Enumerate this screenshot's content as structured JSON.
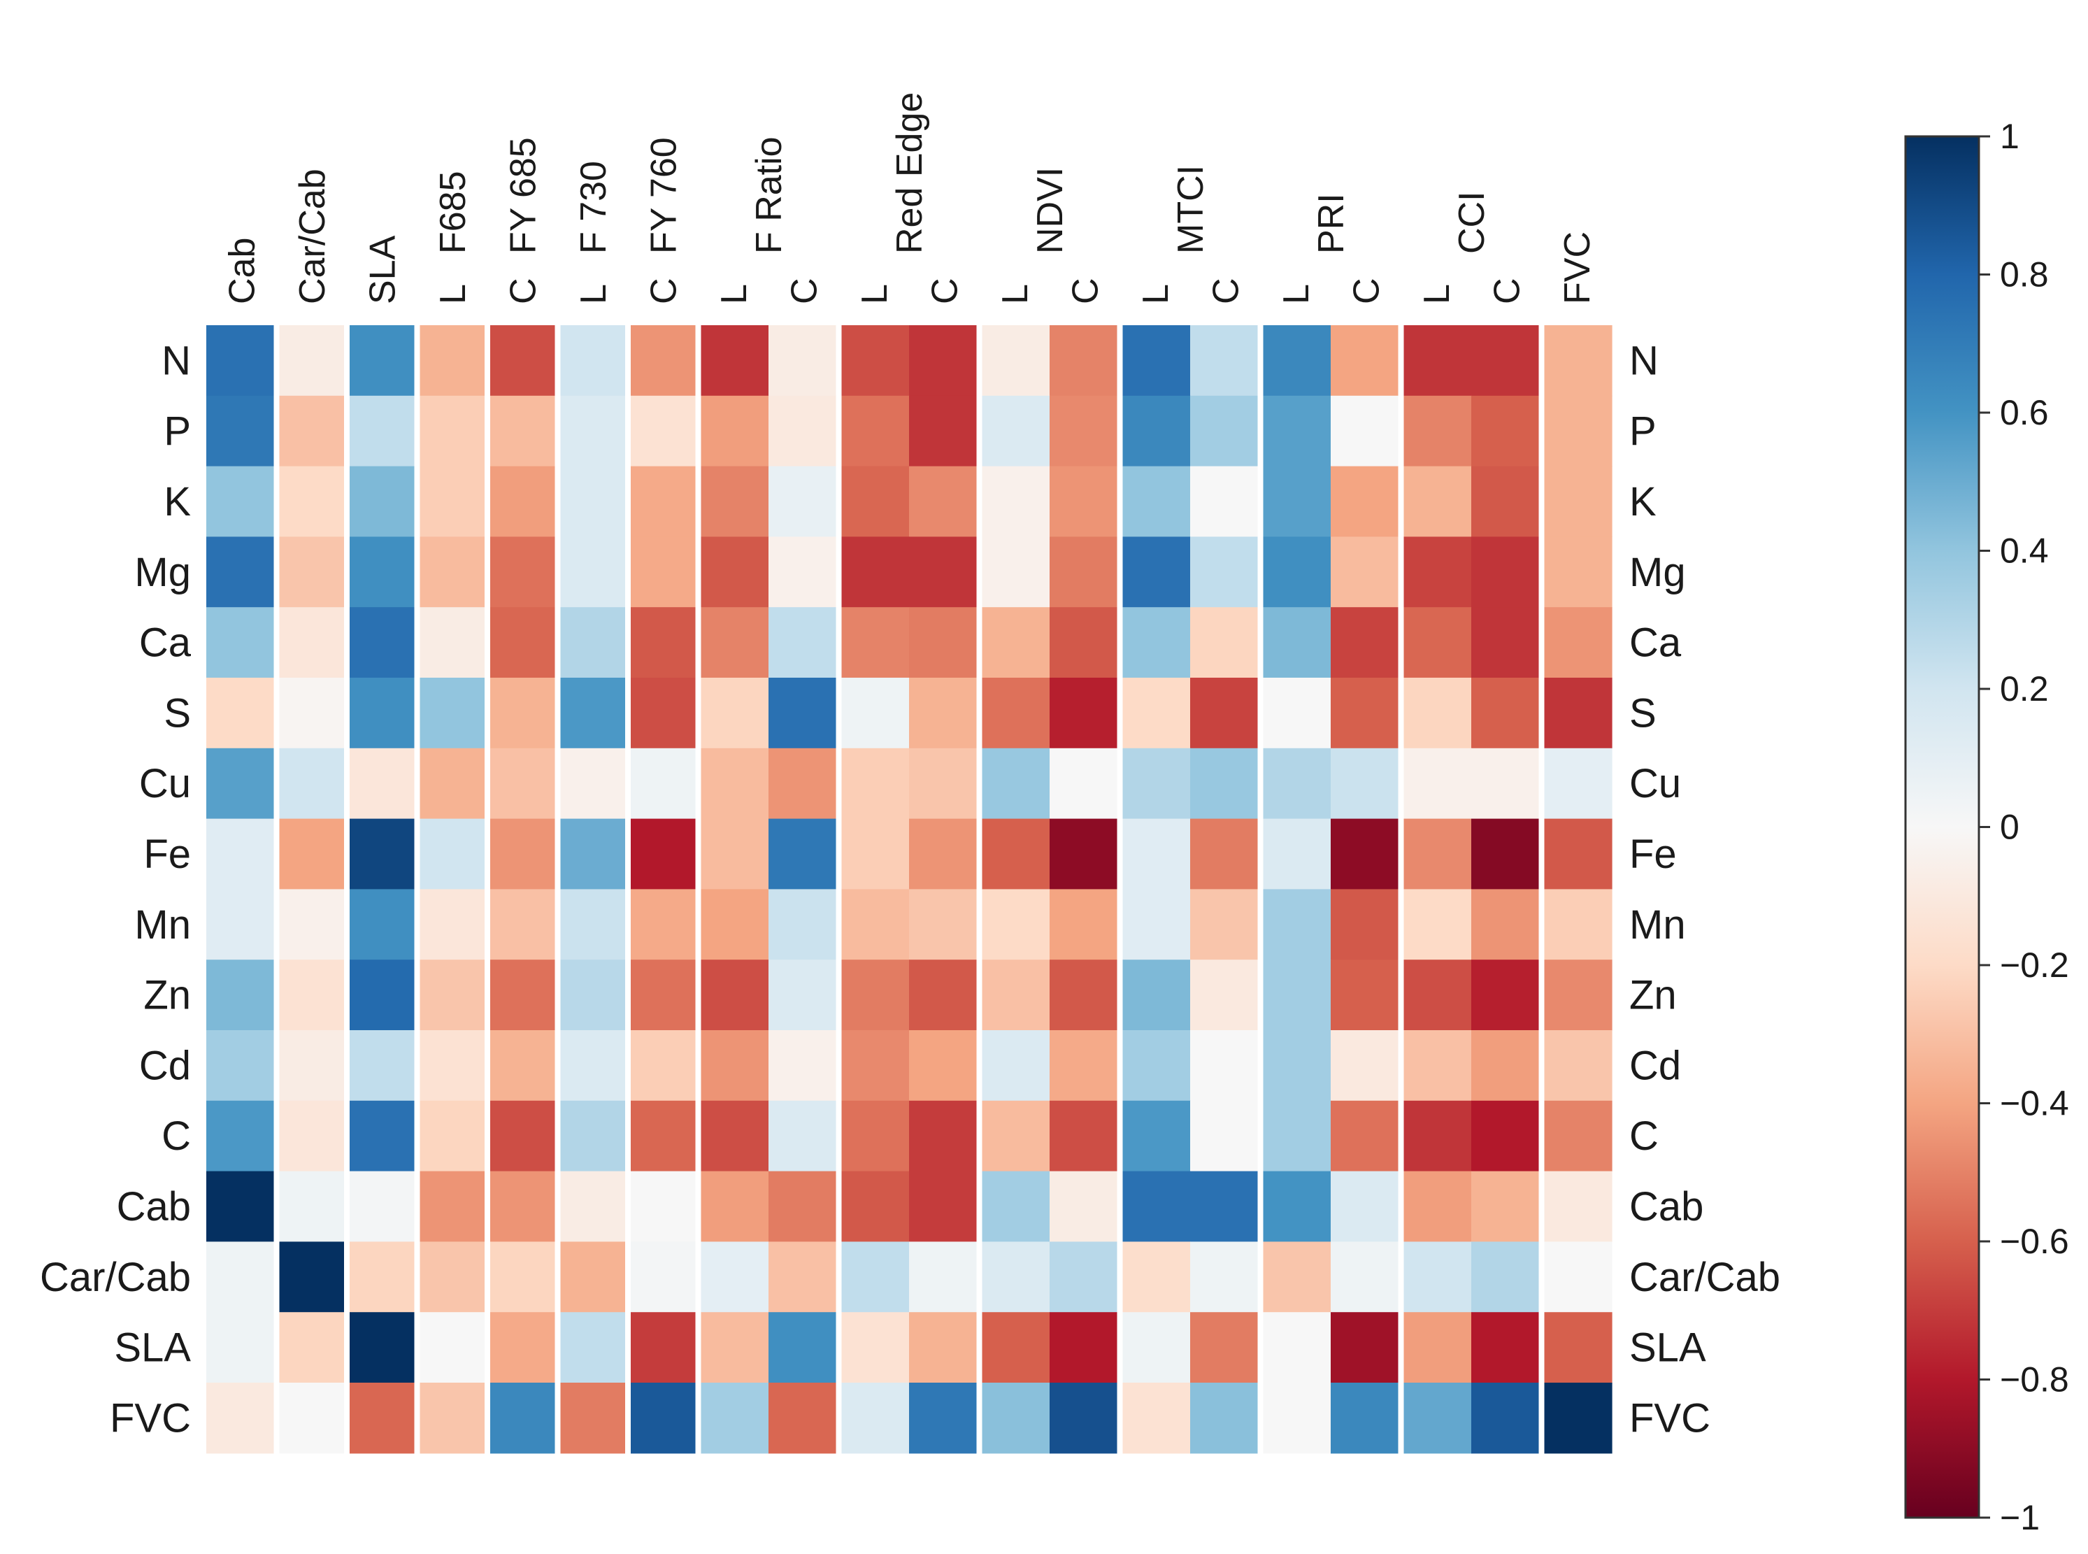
{
  "chart_data": {
    "type": "heatmap",
    "title": "",
    "rows": [
      "N",
      "P",
      "K",
      "Mg",
      "Ca",
      "S",
      "Cu",
      "Fe",
      "Mn",
      "Zn",
      "Cd",
      "C",
      "Cab",
      "Car/Cab",
      "SLA",
      "FVC"
    ],
    "columns": [
      {
        "label": "Cab",
        "group": ""
      },
      {
        "label": "Car/Cab",
        "group": ""
      },
      {
        "label": "SLA",
        "group": ""
      },
      {
        "label": "L",
        "group": "F685"
      },
      {
        "label": "C",
        "group": "FY 685"
      },
      {
        "label": "L",
        "group": "F 730"
      },
      {
        "label": "C",
        "group": "FY 760"
      },
      {
        "label": "L",
        "group": "F Ratio"
      },
      {
        "label": "C",
        "group": "F Ratio"
      },
      {
        "label": "L",
        "group": "Red Edge"
      },
      {
        "label": "C",
        "group": "Red Edge"
      },
      {
        "label": "L",
        "group": "NDVI"
      },
      {
        "label": "C",
        "group": "NDVI"
      },
      {
        "label": "L",
        "group": "MTCI"
      },
      {
        "label": "C",
        "group": "MTCI"
      },
      {
        "label": "L",
        "group": "PRI"
      },
      {
        "label": "C",
        "group": "PRI"
      },
      {
        "label": "L",
        "group": "CCI"
      },
      {
        "label": "C",
        "group": "CCI"
      },
      {
        "label": "FVC",
        "group": ""
      }
    ],
    "column_groups": [
      {
        "label": "Cab",
        "columns": [
          0
        ]
      },
      {
        "label": "Car/Cab",
        "columns": [
          1
        ]
      },
      {
        "label": "SLA",
        "columns": [
          2
        ]
      },
      {
        "label": "F685",
        "columns": [
          3
        ]
      },
      {
        "label": "FY 685",
        "columns": [
          4
        ]
      },
      {
        "label": "F 730",
        "columns": [
          5
        ]
      },
      {
        "label": "FY 760",
        "columns": [
          6
        ]
      },
      {
        "label": "F Ratio",
        "columns": [
          7,
          8
        ]
      },
      {
        "label": "Red Edge",
        "columns": [
          9,
          10
        ]
      },
      {
        "label": "NDVI",
        "columns": [
          11,
          12
        ]
      },
      {
        "label": "MTCI",
        "columns": [
          13,
          14
        ]
      },
      {
        "label": "PRI",
        "columns": [
          15,
          16
        ]
      },
      {
        "label": "CCI",
        "columns": [
          17,
          18
        ]
      },
      {
        "label": "FVC",
        "columns": [
          19
        ]
      }
    ],
    "values": [
      [
        0.75,
        -0.08,
        0.62,
        -0.35,
        -0.65,
        0.2,
        -0.45,
        -0.72,
        -0.08,
        -0.65,
        -0.72,
        -0.08,
        -0.5,
        0.75,
        0.25,
        0.65,
        -0.4,
        -0.72,
        -0.72,
        -0.35
      ],
      [
        0.72,
        -0.3,
        0.25,
        -0.25,
        -0.32,
        0.15,
        -0.15,
        -0.42,
        -0.1,
        -0.55,
        -0.72,
        0.15,
        -0.48,
        0.65,
        0.35,
        0.55,
        0.0,
        -0.5,
        -0.6,
        -0.35
      ],
      [
        0.4,
        -0.2,
        0.45,
        -0.25,
        -0.42,
        0.15,
        -0.38,
        -0.5,
        0.08,
        -0.58,
        -0.48,
        -0.05,
        -0.45,
        0.4,
        0.0,
        0.55,
        -0.4,
        -0.35,
        -0.62,
        -0.35
      ],
      [
        0.75,
        -0.28,
        0.62,
        -0.32,
        -0.55,
        0.15,
        -0.38,
        -0.62,
        -0.05,
        -0.72,
        -0.72,
        -0.05,
        -0.52,
        0.75,
        0.25,
        0.62,
        -0.32,
        -0.68,
        -0.72,
        -0.35
      ],
      [
        0.4,
        -0.12,
        0.75,
        -0.08,
        -0.58,
        0.3,
        -0.62,
        -0.5,
        0.25,
        -0.5,
        -0.52,
        -0.35,
        -0.62,
        0.4,
        -0.22,
        0.45,
        -0.68,
        -0.58,
        -0.72,
        -0.45
      ],
      [
        -0.2,
        -0.02,
        0.62,
        0.4,
        -0.35,
        0.58,
        -0.65,
        -0.22,
        0.75,
        0.05,
        -0.35,
        -0.55,
        -0.78,
        -0.2,
        -0.68,
        0.0,
        -0.6,
        -0.22,
        -0.6,
        -0.72
      ],
      [
        0.55,
        0.2,
        -0.12,
        -0.35,
        -0.3,
        -0.05,
        0.05,
        -0.32,
        -0.45,
        -0.25,
        -0.28,
        0.38,
        0.0,
        0.3,
        0.38,
        0.3,
        0.22,
        -0.05,
        -0.05,
        0.1
      ],
      [
        0.12,
        -0.4,
        0.92,
        0.2,
        -0.45,
        0.5,
        -0.8,
        -0.32,
        0.72,
        -0.25,
        -0.45,
        -0.6,
        -0.9,
        0.12,
        -0.52,
        0.15,
        -0.9,
        -0.48,
        -0.92,
        -0.62
      ],
      [
        0.12,
        -0.05,
        0.62,
        -0.12,
        -0.3,
        0.22,
        -0.38,
        -0.4,
        0.22,
        -0.32,
        -0.28,
        -0.2,
        -0.4,
        0.12,
        -0.28,
        0.35,
        -0.62,
        -0.2,
        -0.45,
        -0.25
      ],
      [
        0.45,
        -0.15,
        0.78,
        -0.28,
        -0.55,
        0.28,
        -0.55,
        -0.65,
        0.15,
        -0.52,
        -0.62,
        -0.3,
        -0.62,
        0.45,
        -0.1,
        0.35,
        -0.6,
        -0.65,
        -0.78,
        -0.48
      ],
      [
        0.35,
        -0.08,
        0.25,
        -0.15,
        -0.35,
        0.15,
        -0.25,
        -0.45,
        -0.05,
        -0.48,
        -0.4,
        0.15,
        -0.38,
        0.35,
        0.0,
        0.35,
        -0.1,
        -0.3,
        -0.42,
        -0.28
      ],
      [
        0.58,
        -0.12,
        0.75,
        -0.22,
        -0.65,
        0.3,
        -0.58,
        -0.65,
        0.15,
        -0.55,
        -0.7,
        -0.32,
        -0.65,
        0.58,
        0.0,
        0.35,
        -0.55,
        -0.72,
        -0.8,
        -0.5
      ],
      [
        1.0,
        0.05,
        0.02,
        -0.45,
        -0.45,
        -0.08,
        0.0,
        -0.42,
        -0.52,
        -0.62,
        -0.7,
        0.35,
        -0.08,
        0.75,
        0.75,
        0.6,
        0.15,
        -0.42,
        -0.35,
        -0.1
      ],
      [
        0.05,
        1.0,
        -0.22,
        -0.28,
        -0.22,
        -0.35,
        0.02,
        0.1,
        -0.3,
        0.25,
        0.05,
        0.15,
        0.28,
        -0.18,
        0.05,
        -0.28,
        0.05,
        0.2,
        0.3,
        0.0
      ],
      [
        0.05,
        -0.22,
        1.0,
        0.0,
        -0.38,
        0.25,
        -0.7,
        -0.32,
        0.62,
        -0.15,
        -0.35,
        -0.6,
        -0.8,
        0.05,
        -0.52,
        0.0,
        -0.85,
        -0.42,
        -0.8,
        -0.6
      ],
      [
        -0.1,
        0.0,
        -0.58,
        -0.28,
        0.65,
        -0.52,
        0.85,
        0.35,
        -0.58,
        0.15,
        0.72,
        0.42,
        0.88,
        -0.15,
        0.42,
        0.0,
        0.65,
        0.52,
        0.85,
        1.0
      ]
    ],
    "colorbar": {
      "range": [
        -1,
        1
      ],
      "colormap": "RdBu",
      "tick_values": [
        1,
        0.8,
        0.6,
        0.4,
        0.2,
        0,
        -0.2,
        -0.4,
        -0.6,
        -0.8,
        -1
      ],
      "tick_labels": [
        "1",
        "0.8",
        "0.6",
        "0.4",
        "0.2",
        "0",
        "−0.2",
        "−0.4",
        "−0.6",
        "−0.8",
        "−1"
      ],
      "placement": "right"
    }
  }
}
